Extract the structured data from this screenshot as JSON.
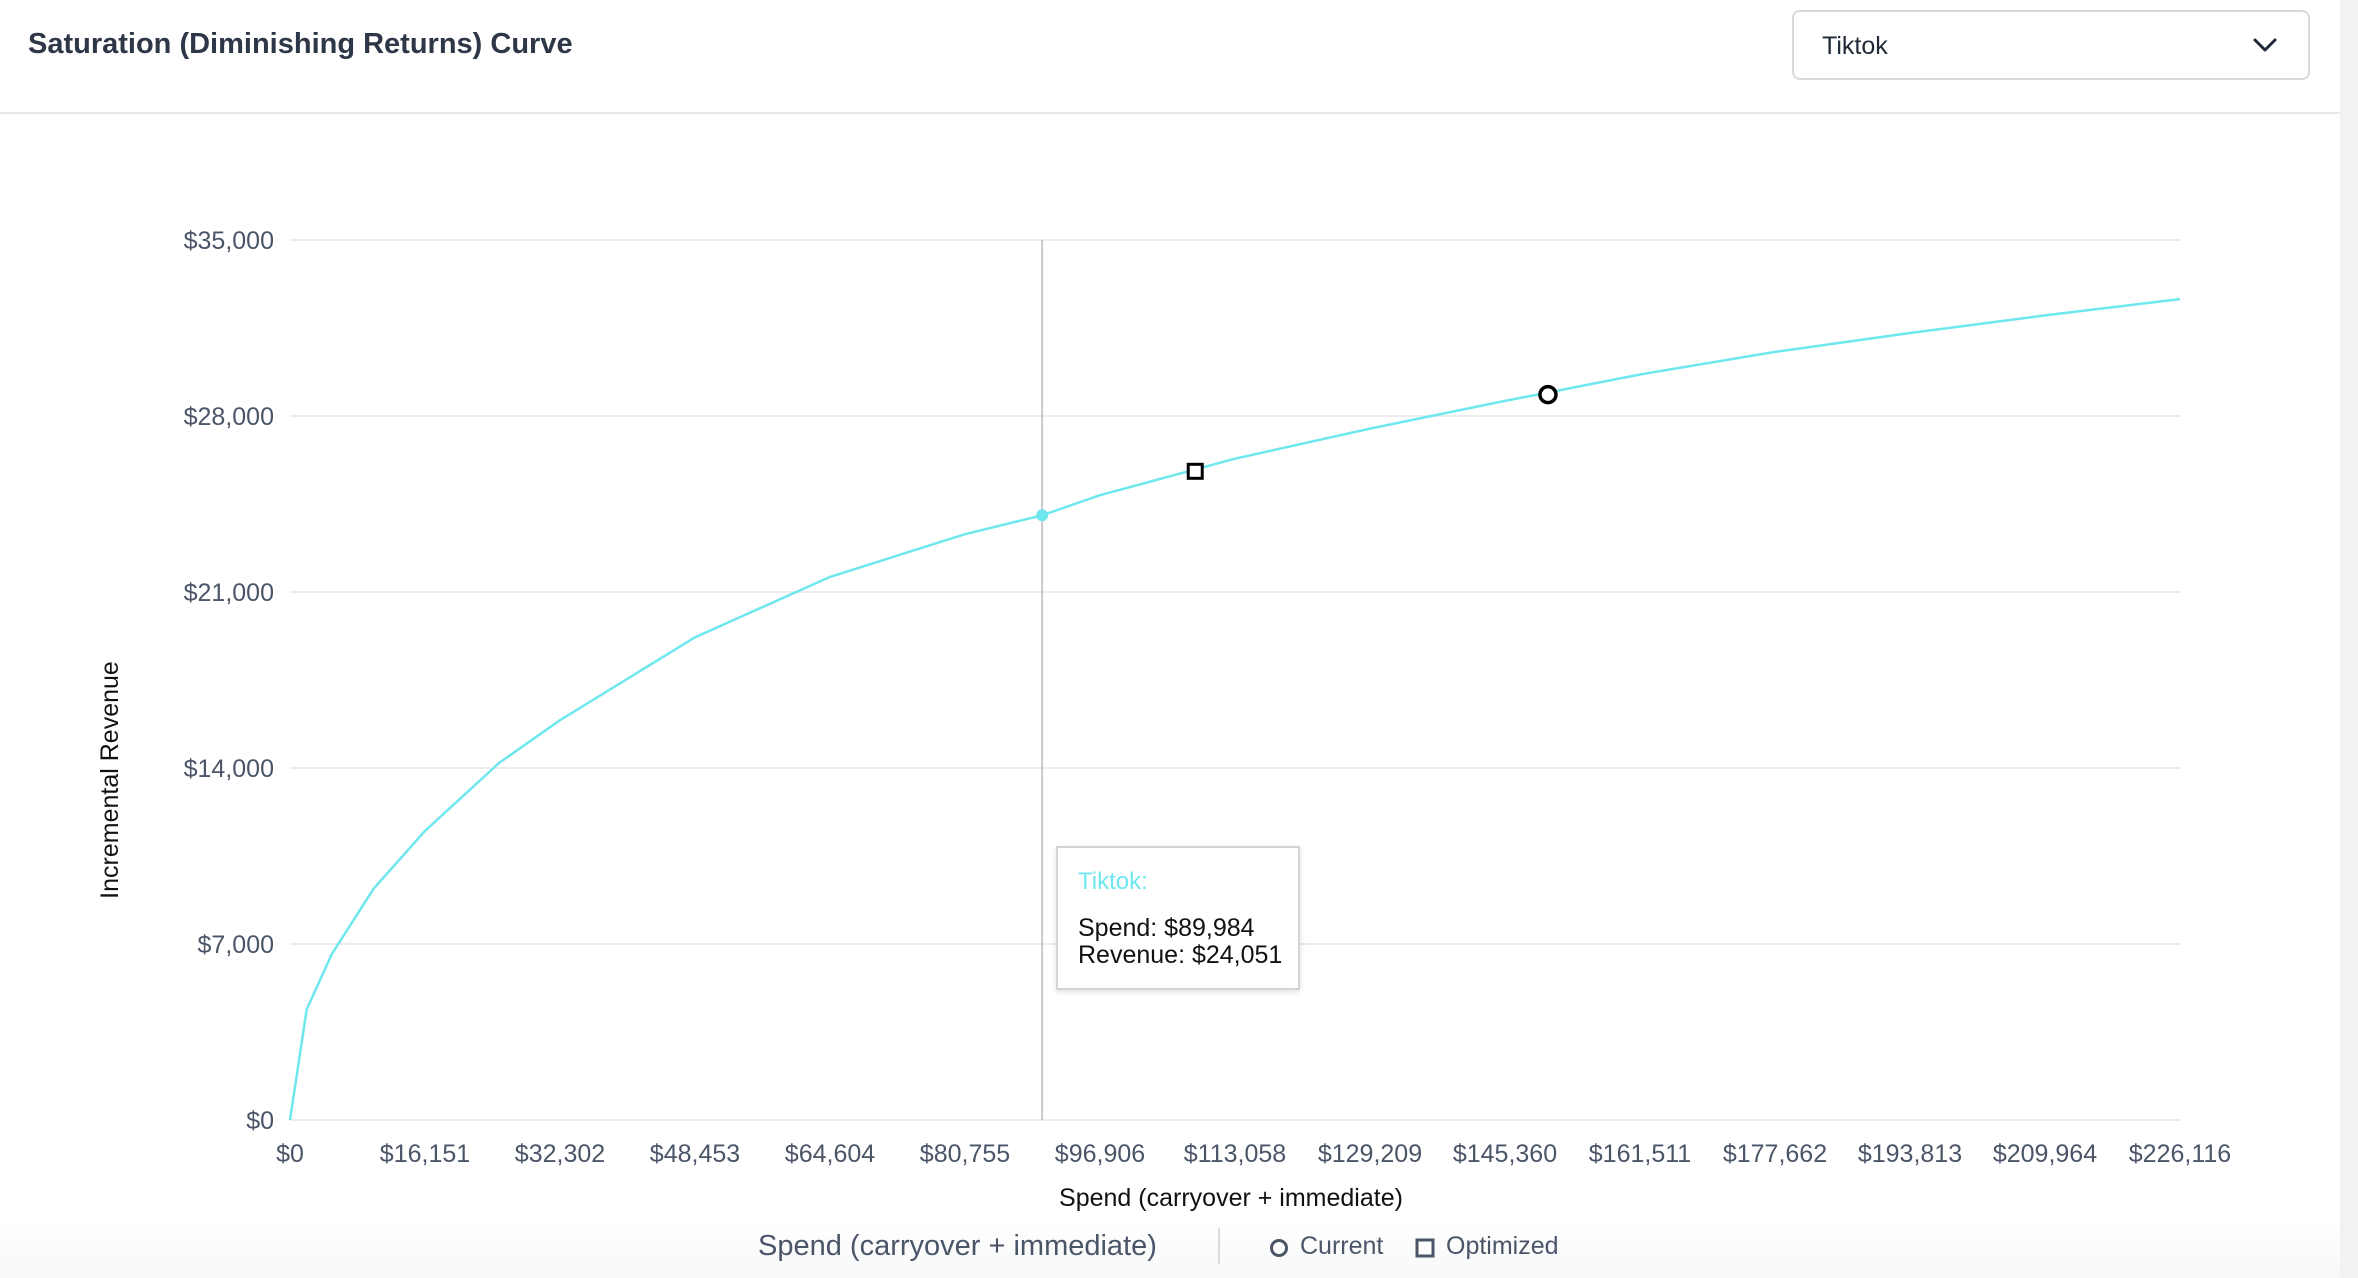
{
  "header": {
    "title": "Saturation (Diminishing Returns) Curve",
    "channel_select": {
      "value": "Tiktok",
      "icon": "chevron-down-icon"
    }
  },
  "chart_data": {
    "type": "line",
    "xlabel": "Spend (carryover + immediate)",
    "ylabel": "Incremental Revenue",
    "xlim": [
      0,
      226116
    ],
    "ylim": [
      0,
      35000
    ],
    "x_ticks": [
      "$0",
      "$16,151",
      "$32,302",
      "$48,453",
      "$64,604",
      "$80,755",
      "$96,906",
      "$113,058",
      "$129,209",
      "$145,360",
      "$161,511",
      "$177,662",
      "$193,813",
      "$209,964",
      "$226,116"
    ],
    "y_ticks": [
      "$0",
      "$7,000",
      "$14,000",
      "$21,000",
      "$28,000",
      "$35,000"
    ],
    "grid": "horizontal",
    "series": [
      {
        "name": "Tiktok",
        "color": "#6ee7ee",
        "x": [
          0,
          2000,
          5000,
          10000,
          16151,
          25000,
          32302,
          48453,
          64604,
          80755,
          89984,
          96906,
          113058,
          129209,
          145360,
          161511,
          177662,
          193813,
          209964,
          226116
        ],
        "y": [
          0,
          4400,
          6600,
          9200,
          11500,
          14200,
          15900,
          19200,
          21600,
          23300,
          24051,
          24850,
          26300,
          27500,
          28600,
          29650,
          30550,
          31300,
          32000,
          32650
        ]
      }
    ],
    "markers": {
      "current": {
        "x": 150500,
        "y": 28850
      },
      "optimized": {
        "x": 108300,
        "y": 25800
      }
    },
    "hover": {
      "x": 89984,
      "y": 24051
    },
    "legend": {
      "title": "Spend (carryover + immediate)",
      "items": [
        {
          "label": "Current",
          "shape": "circle"
        },
        {
          "label": "Optimized",
          "shape": "square"
        }
      ],
      "placement": "bottom"
    }
  },
  "tooltip": {
    "title": "Tiktok:",
    "spend": "Spend: $89,984",
    "revenue": "Revenue: $24,051"
  }
}
